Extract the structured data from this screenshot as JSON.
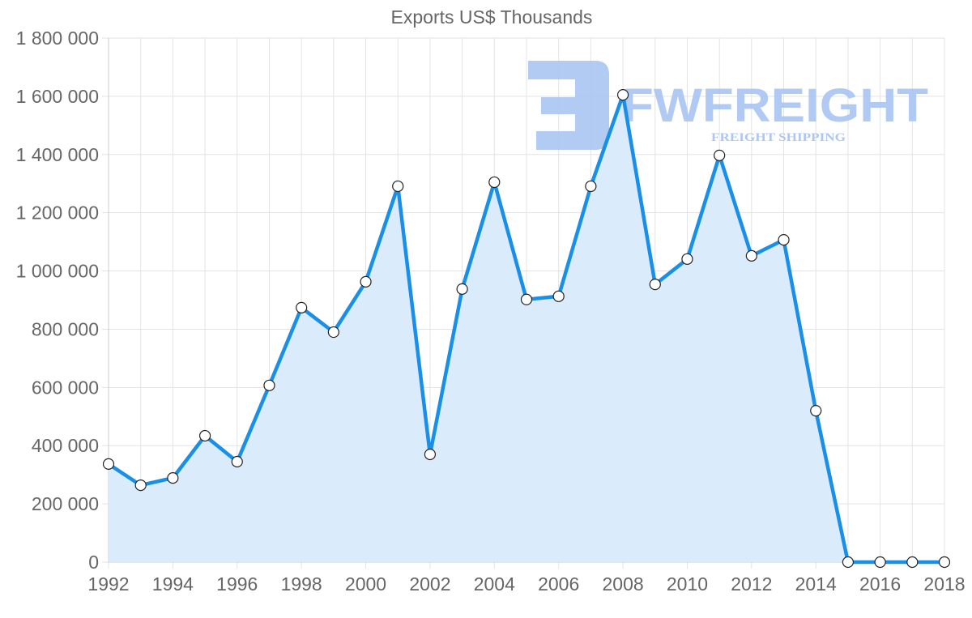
{
  "chart_data": {
    "type": "line",
    "title": "Exports US$ Thousands",
    "xlabel": "",
    "ylabel": "",
    "x": [
      1992,
      1993,
      1994,
      1995,
      1996,
      1997,
      1998,
      1999,
      2000,
      2001,
      2002,
      2003,
      2004,
      2005,
      2006,
      2007,
      2008,
      2009,
      2010,
      2011,
      2012,
      2013,
      2014,
      2015,
      2016,
      2017,
      2018
    ],
    "series": [
      {
        "name": "Exports US$ Thousands",
        "values": [
          337000,
          264000,
          289000,
          434000,
          345000,
          607000,
          874000,
          790000,
          963000,
          1291000,
          370000,
          938000,
          1305000,
          902000,
          913000,
          1291000,
          1605000,
          954000,
          1041000,
          1397000,
          1052000,
          1107000,
          520000,
          0,
          0,
          0,
          0
        ],
        "fill": true
      }
    ],
    "xtick_labels": [
      "1992",
      "1994",
      "1996",
      "1998",
      "2000",
      "2002",
      "2004",
      "2006",
      "2008",
      "2010",
      "2012",
      "2014",
      "2016",
      "2018"
    ],
    "ytick_labels": [
      "0",
      "200 000",
      "400 000",
      "600 000",
      "800 000",
      "1 000 000",
      "1 200 000",
      "1 400 000",
      "1 600 000",
      "1 800 000"
    ],
    "yticks": [
      0,
      200000,
      400000,
      600000,
      800000,
      1000000,
      1200000,
      1400000,
      1600000,
      1800000
    ],
    "ylim": [
      0,
      1800000
    ],
    "xlim": [
      1992,
      2018
    ],
    "grid": true,
    "legend": "none",
    "colors": {
      "line": "#1a8fe8",
      "fill": "#d8ebfc",
      "point_fill": "#ffffff",
      "point_stroke": "#222222",
      "grid": "#e3e3e3",
      "text": "#666666"
    }
  },
  "watermark": {
    "brand": "FWFREIGHT",
    "tagline": "FREIGHT SHIPPING",
    "color": "#a9c5f2"
  }
}
